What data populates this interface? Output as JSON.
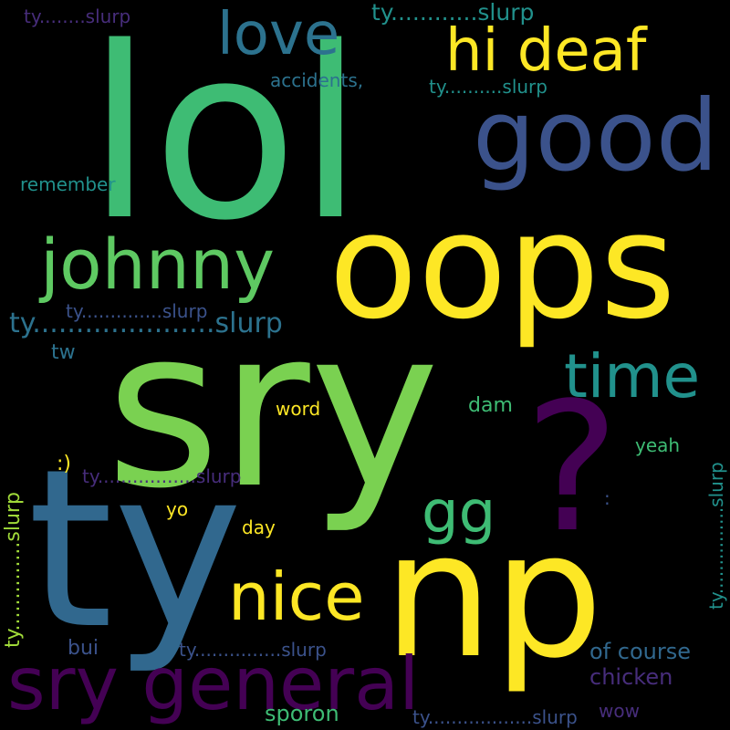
{
  "colors": {
    "background": "#000000",
    "yellow": "#fde725",
    "lime": "#7ad151",
    "green": "#3ebc74",
    "teal_green": "#2ab07f",
    "teal": "#21918c",
    "blue_teal": "#2c728e",
    "blue": "#3b528b",
    "indigo": "#472d7b",
    "purple": "#440154"
  },
  "words": {
    "lol": "lol",
    "sry": "sry",
    "ty": "ty",
    "np": "np",
    "oops": "oops",
    "question_mark": "?",
    "good": "good",
    "hi_deaf": "hi deaf",
    "love": "love",
    "johnny": "johnny",
    "time": "time",
    "nice": "nice",
    "sry_general": "sry general",
    "gg": "gg",
    "slurp_big": "ty.....................slurp",
    "slurp_top": "ty............slurp",
    "slurp_topleft": "ty........slurp",
    "slurp_mid_top": "ty..........slurp",
    "slurp_left": "ty..............slurp",
    "slurp_center": "ty.................slurp",
    "slurp_bottom": "ty...............slurp",
    "slurp_bottomright": "ty..................slurp",
    "slurp_vert_left": "ty..............slurp",
    "slurp_vert_right": "ty...............slurp",
    "accidents": "accidents,",
    "remember": "remember",
    "tw": "tw",
    "word": "word",
    "dam": "dam",
    "smiley": ":)",
    "yeah": "yeah",
    "colon": ":",
    "yo": "yo",
    "day": "day",
    "bui": "bui",
    "of_course": "of course",
    "chicken": "chicken",
    "sporon": "sporon",
    "wow": "wow"
  }
}
